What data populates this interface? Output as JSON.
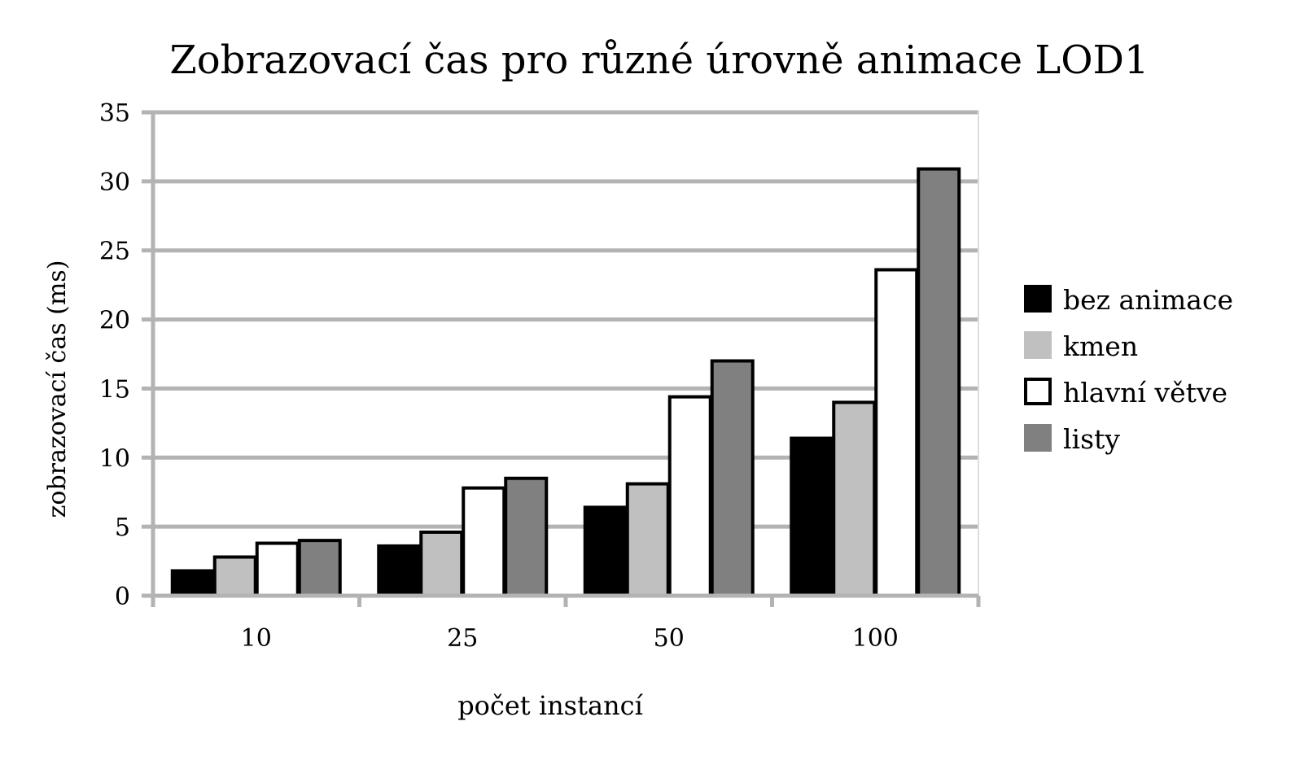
{
  "chart_data": {
    "type": "bar",
    "title": "Zobrazovací čas pro různé úrovně animace LOD1",
    "xlabel": "počet instancí",
    "ylabel": "zobrazovací čas (ms)",
    "categories": [
      "10",
      "25",
      "50",
      "100"
    ],
    "ylim": [
      0,
      35
    ],
    "yticks": [
      0,
      5,
      10,
      15,
      20,
      25,
      30,
      35
    ],
    "grid": true,
    "legend_position": "right",
    "series": [
      {
        "name": "bez animace",
        "color": "#000000",
        "values": [
          1.8,
          3.6,
          6.4,
          11.4
        ]
      },
      {
        "name": "kmen",
        "color": "#c0c0c0",
        "values": [
          2.8,
          4.6,
          8.1,
          14.0
        ]
      },
      {
        "name": "hlavní větve",
        "color": "#ffffff",
        "values": [
          3.8,
          7.8,
          14.4,
          23.6
        ]
      },
      {
        "name": "listy",
        "color": "#808080",
        "values": [
          4.0,
          8.5,
          17.0,
          30.9
        ]
      }
    ]
  }
}
